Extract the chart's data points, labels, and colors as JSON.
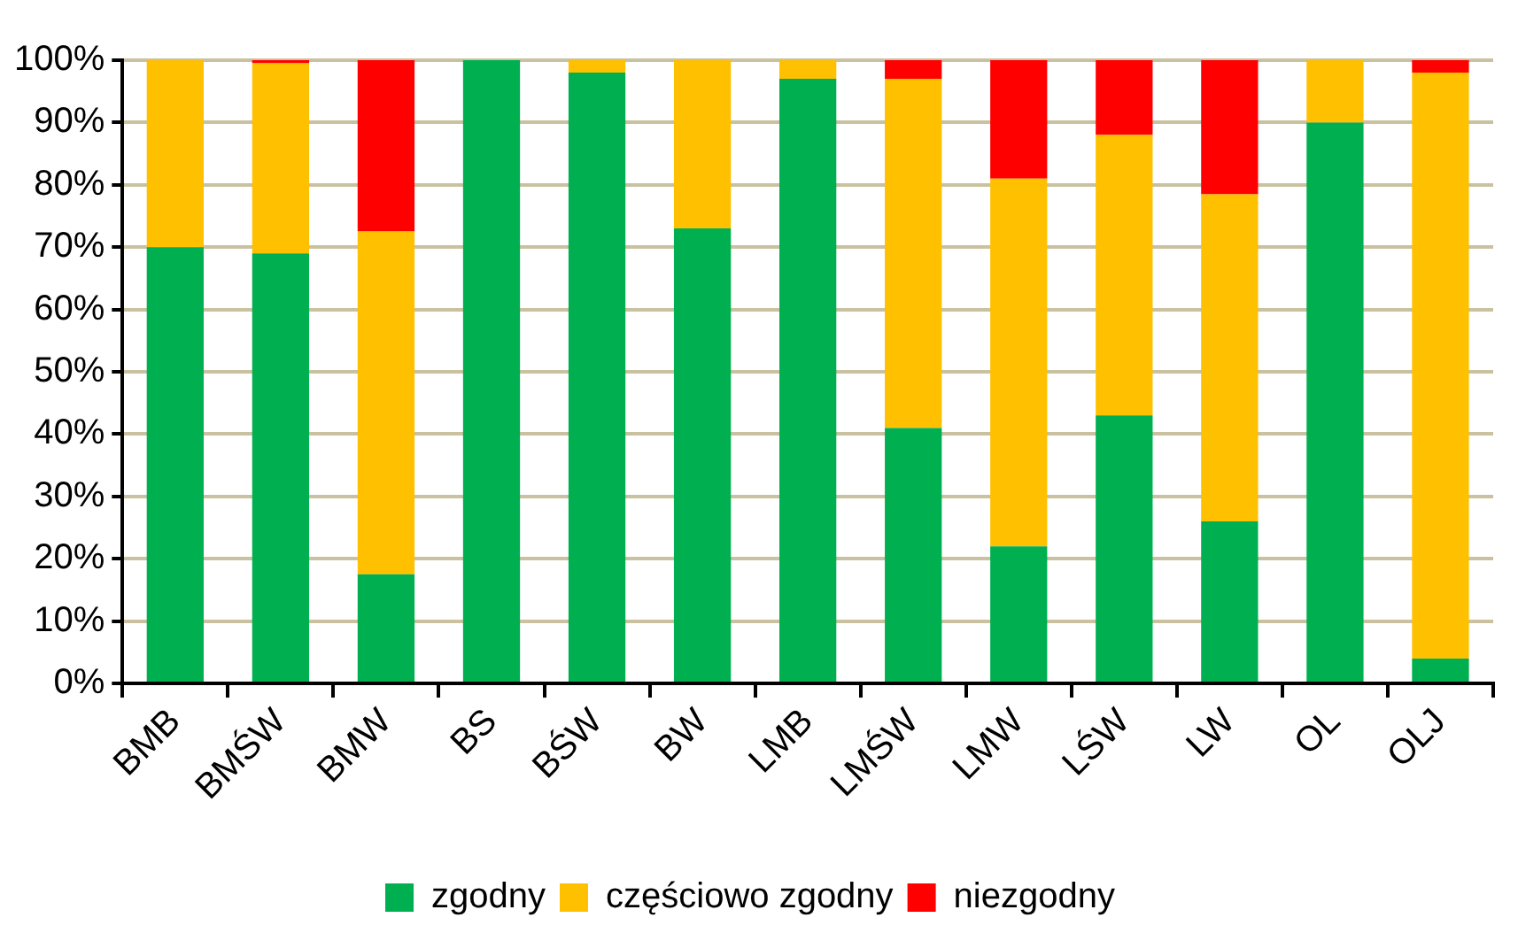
{
  "chart_data": {
    "type": "bar",
    "stacked": true,
    "categories": [
      "BMB",
      "BMŚW",
      "BMW",
      "BS",
      "BŚW",
      "BW",
      "LMB",
      "LMŚW",
      "LMW",
      "LŚW",
      "LW",
      "OL",
      "OLJ"
    ],
    "series": [
      {
        "name": "zgodny",
        "color": "#00b050",
        "values": [
          70,
          69,
          17.5,
          100,
          98,
          73,
          97,
          41,
          22,
          43,
          26,
          90,
          4
        ]
      },
      {
        "name": "częściowo zgodny",
        "color": "#ffc000",
        "values": [
          30,
          30.5,
          55,
          0,
          2,
          27,
          3,
          56,
          59,
          45,
          52.5,
          10,
          94
        ]
      },
      {
        "name": "niezgodny",
        "color": "#ff0000",
        "values": [
          0,
          0.5,
          27.5,
          0,
          0,
          0,
          0,
          3,
          19,
          12,
          21.5,
          0,
          2
        ]
      }
    ],
    "ylim": [
      0,
      100
    ],
    "yticks": [
      {
        "value": 0,
        "label": "0%"
      },
      {
        "value": 10,
        "label": "10%"
      },
      {
        "value": 20,
        "label": "20%"
      },
      {
        "value": 30,
        "label": "30%"
      },
      {
        "value": 40,
        "label": "40%"
      },
      {
        "value": 50,
        "label": "50%"
      },
      {
        "value": 60,
        "label": "60%"
      },
      {
        "value": 70,
        "label": "70%"
      },
      {
        "value": 80,
        "label": "80%"
      },
      {
        "value": 90,
        "label": "90%"
      },
      {
        "value": 100,
        "label": "100%"
      }
    ],
    "grid": "y",
    "legend": "bottom"
  }
}
